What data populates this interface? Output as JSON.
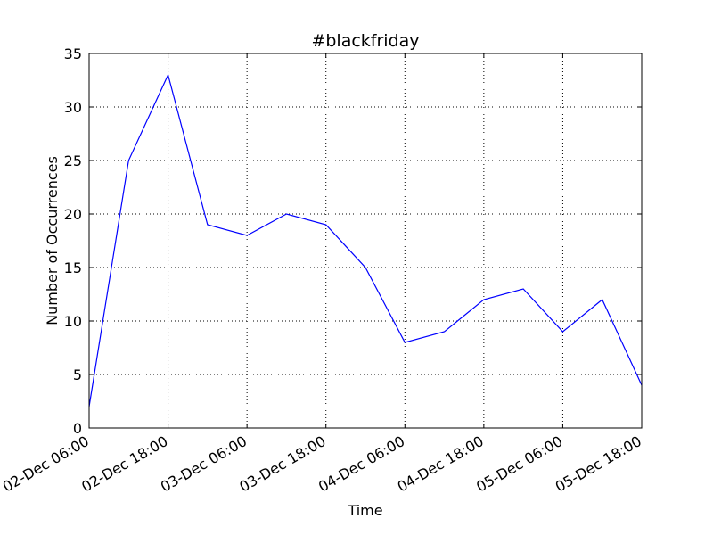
{
  "chart_data": {
    "type": "line",
    "title": "#blackfriday",
    "xlabel": "Time",
    "ylabel": "Number of Occurrences",
    "x_ticks": [
      "02-Dec 06:00",
      "02-Dec 18:00",
      "03-Dec 06:00",
      "03-Dec 18:00",
      "04-Dec 06:00",
      "04-Dec 18:00",
      "05-Dec 06:00",
      "05-Dec 18:00"
    ],
    "y_ticks": [
      0,
      5,
      10,
      15,
      20,
      25,
      30,
      35
    ],
    "xlim": [
      "2-Dec 06:00",
      "5-Dec 18:00"
    ],
    "ylim": [
      0,
      35
    ],
    "grid": true,
    "series": [
      {
        "color": "#0000ff",
        "x": [
          "2-Dec 06:00",
          "2-Dec 12:00",
          "2-Dec 18:00",
          "3-Dec 00:00",
          "3-Dec 06:00",
          "3-Dec 12:00",
          "3-Dec 18:00",
          "4-Dec 00:00",
          "4-Dec 06:00",
          "4-Dec 12:00",
          "4-Dec 18:00",
          "5-Dec 00:00",
          "5-Dec 06:00",
          "5-Dec 12:00",
          "5-Dec 18:00"
        ],
        "values": [
          2,
          25,
          33,
          19,
          18,
          20,
          19,
          15,
          8,
          9,
          12,
          13,
          9,
          12,
          4
        ]
      }
    ]
  }
}
